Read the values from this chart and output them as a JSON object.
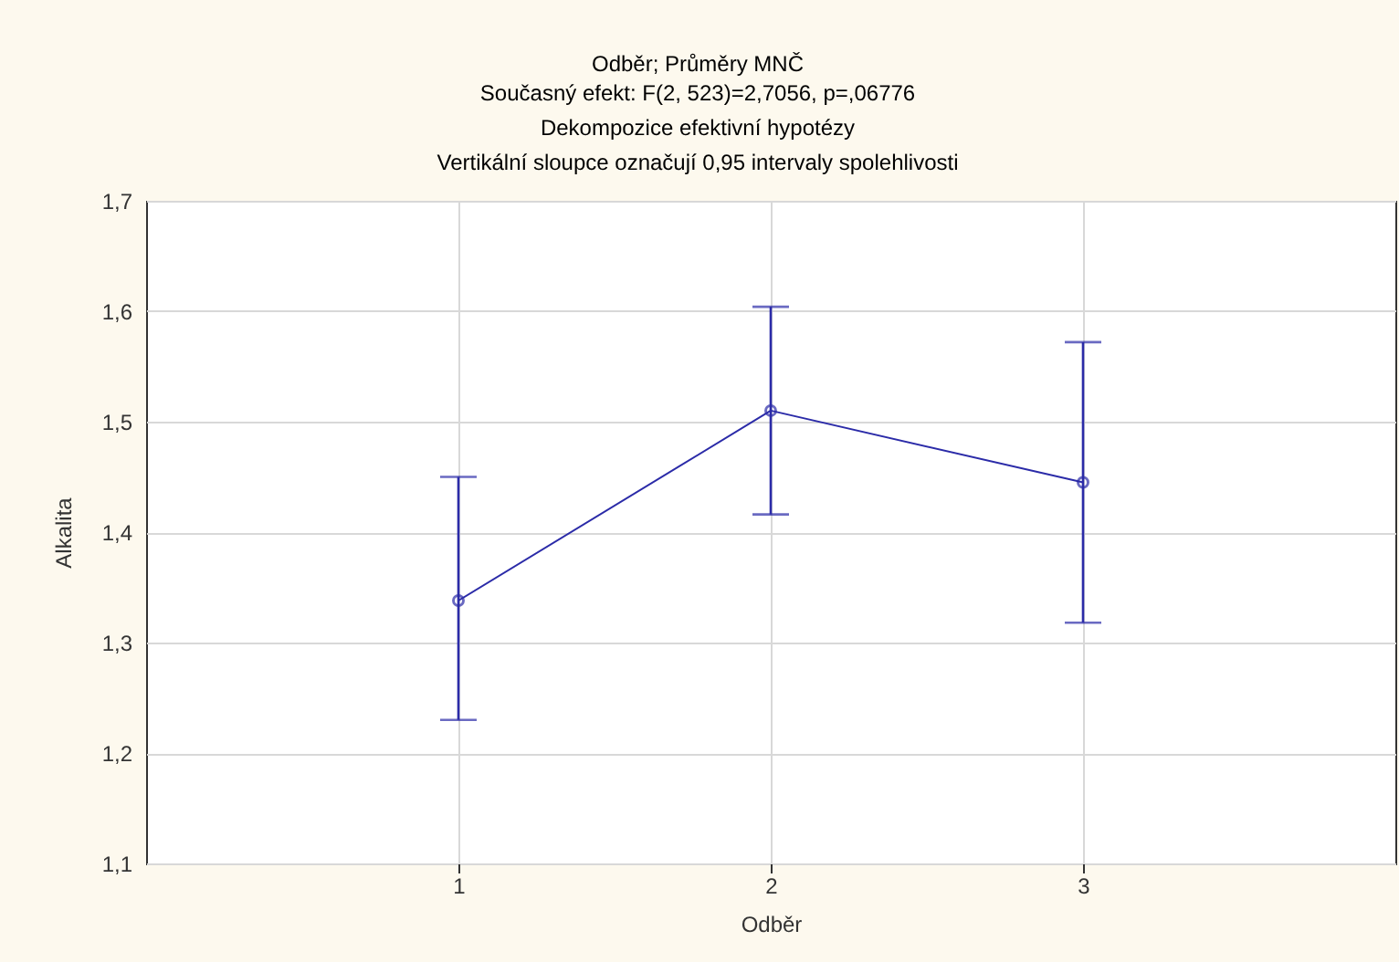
{
  "chart_data": {
    "type": "line",
    "title": "Odběr; Průměry MNČ",
    "subtitle": "Současný efekt: F(2, 523)=2,7056, p=,06776\nDekompozice efektivní hypotézy\nVertikální sloupce označují 0,95 intervaly spolehlivosti",
    "xlabel": "Odběr",
    "ylabel": "Alkalita",
    "categories": [
      "1",
      "2",
      "3"
    ],
    "series": [
      {
        "color": "#2b2ba8",
        "values": [
          1.338,
          1.51,
          1.445
        ],
        "errors": [
          [
            1.23,
            1.45
          ],
          [
            1.416,
            1.604
          ],
          [
            1.318,
            1.572
          ]
        ]
      }
    ],
    "ylim": [
      1.1,
      1.7
    ],
    "yticks": [
      {
        "value": 1.1,
        "label": "1,1"
      },
      {
        "value": 1.2,
        "label": "1,2"
      },
      {
        "value": 1.3,
        "label": "1,3"
      },
      {
        "value": 1.4,
        "label": "1,4"
      },
      {
        "value": 1.5,
        "label": "1,5"
      },
      {
        "value": 1.6,
        "label": "1,6"
      },
      {
        "value": 1.7,
        "label": "1,7"
      }
    ],
    "grid": true,
    "marker": "circle",
    "line_style": "solid"
  }
}
